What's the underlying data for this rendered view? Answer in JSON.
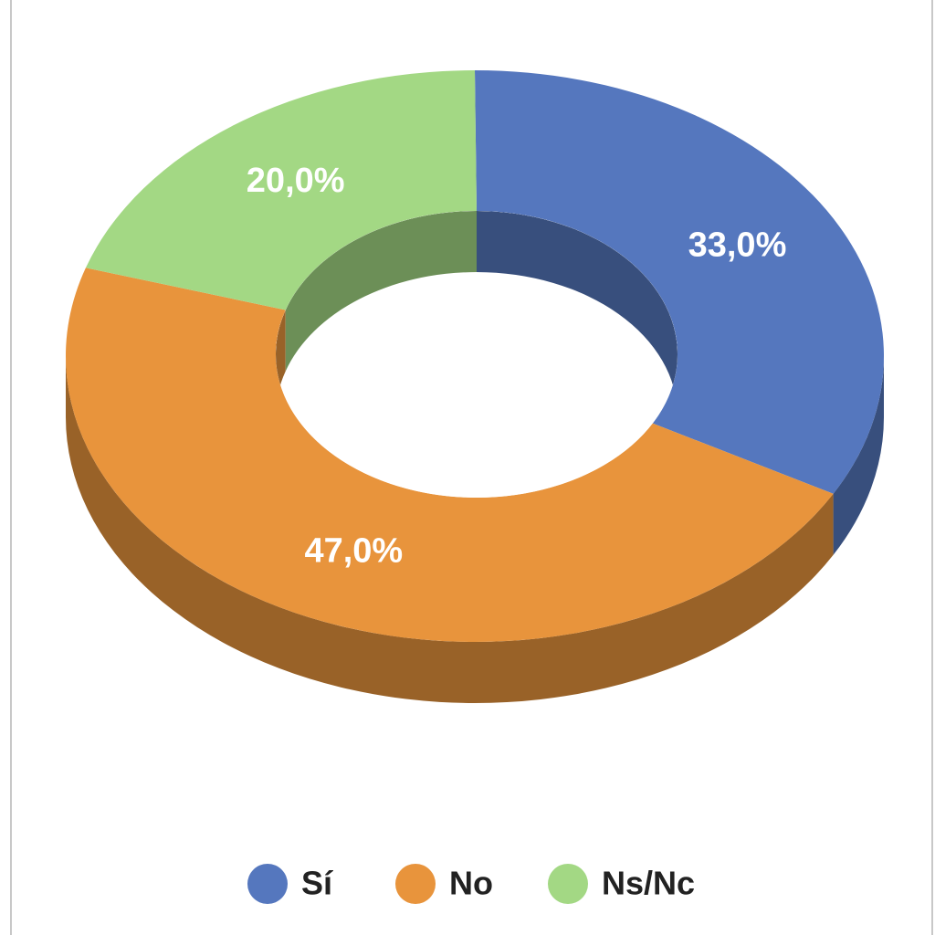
{
  "chart_data": {
    "type": "pie",
    "categories": [
      "Sí",
      "No",
      "Ns/Nc"
    ],
    "values": [
      33.0,
      47.0,
      20.0
    ],
    "value_labels": [
      "33,0%",
      "47,0%",
      "20,0%"
    ],
    "colors": [
      "#5577be",
      "#e8943c",
      "#a3d884"
    ],
    "legend": "bottom"
  }
}
